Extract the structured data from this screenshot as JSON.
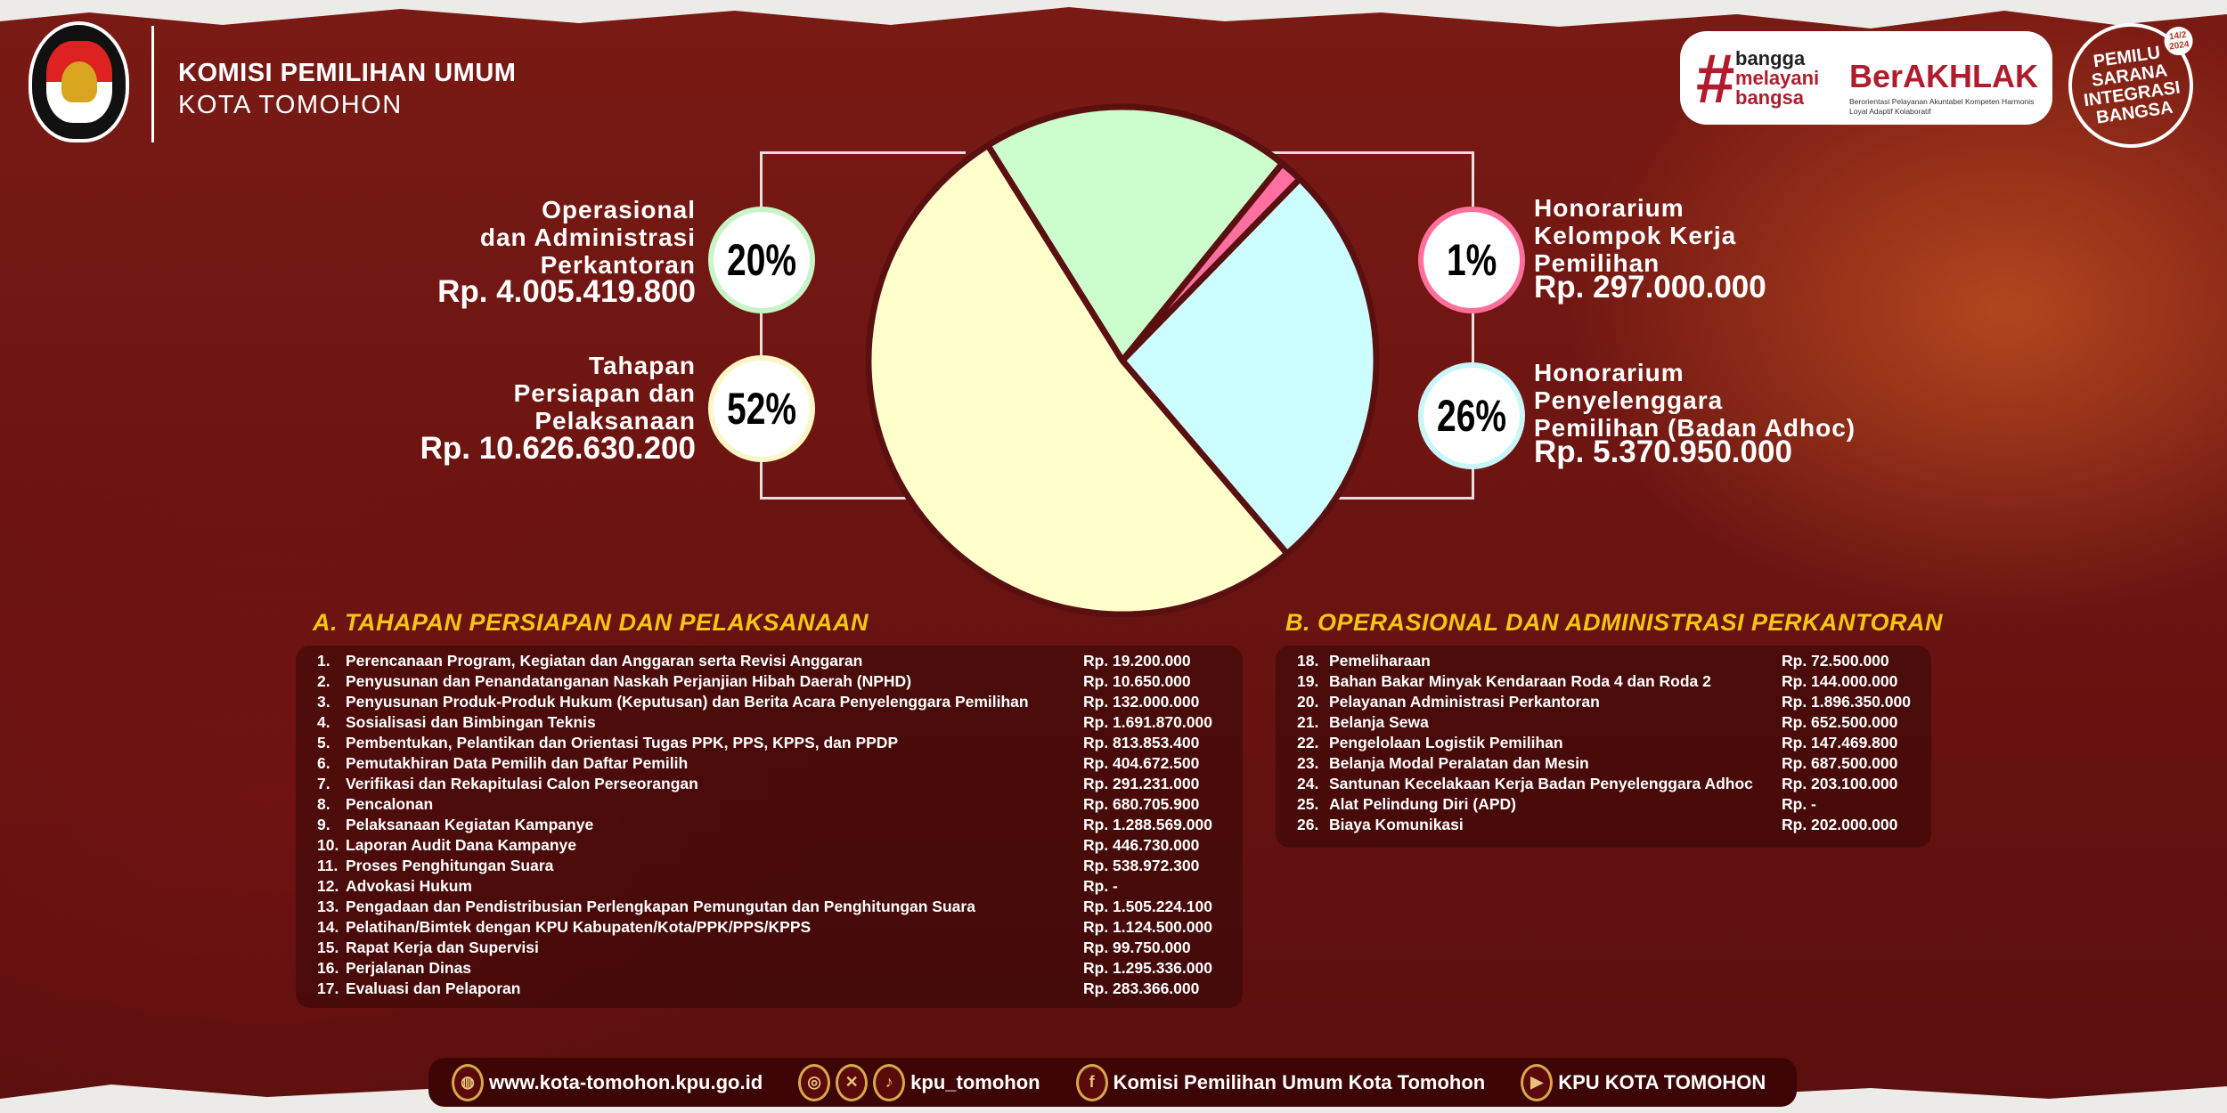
{
  "header": {
    "org_line1": "KOMISI PEMILIHAN UMUM",
    "org_line2": "KOTA TOMOHON",
    "logo_text": "KOMISI PEMILIHAN UMUM"
  },
  "badges": {
    "hash": "#",
    "bangga": [
      "bangga",
      "melayani",
      "bangsa"
    ],
    "berakhlak": "BerAKHLAK",
    "berakhlak_sub": "Berorientasi Pelayanan Akuntabel Kompeten Harmonis Loyal Adaptif Kolaboratif",
    "pemilu": [
      "PEMILU",
      "SARANA",
      "INTEGRASI",
      "BANGSA"
    ],
    "pemilu_date": "14/2 2024"
  },
  "chart_data": {
    "type": "pie",
    "slices": [
      {
        "label": "Operasional dan Administrasi Perkantoran",
        "percent_label": "20%",
        "amount": "Rp. 4.005.419.800",
        "value": 4005419800,
        "color": "#ccfdcc",
        "ring": "#c7f5c7"
      },
      {
        "label": "Honorarium Kelompok Kerja Pemilihan",
        "percent_label": "1%",
        "amount": "Rp. 297.000.000",
        "value": 297000000,
        "color": "#ff6fa0",
        "ring": "#ff6f9c"
      },
      {
        "label": "Honorarium Penyelenggara Pemilihan (Badan Adhoc)",
        "percent_label": "26%",
        "amount": "Rp. 5.370.950.000",
        "value": 5370950000,
        "color": "#ccfeff",
        "ring": "#c9f6fb"
      },
      {
        "label": "Tahapan Persiapan dan Pelaksanaan",
        "percent_label": "52%",
        "amount": "Rp. 10.626.630.200",
        "value": 10626630200,
        "color": "#ffffcc",
        "ring": "#fbf6c8"
      }
    ],
    "label_lines": {
      "s0": [
        "Operasional",
        "dan Administrasi",
        "Perkantoran"
      ],
      "s1": [
        "Honorarium",
        "Kelompok Kerja",
        "Pemilihan"
      ],
      "s2": [
        "Honorarium",
        "Penyelenggara",
        "Pemilihan (Badan Adhoc)"
      ],
      "s3": [
        "Tahapan",
        "Persiapan dan",
        "Pelaksanaan"
      ]
    }
  },
  "section_a": {
    "title": "A. TAHAPAN PERSIAPAN DAN PELAKSANAAN",
    "items": [
      [
        "1.",
        "Perencanaan Program, Kegiatan dan Anggaran serta Revisi Anggaran",
        "Rp. 19.200.000"
      ],
      [
        "2.",
        "Penyusunan dan Penandatanganan Naskah Perjanjian Hibah Daerah (NPHD)",
        "Rp. 10.650.000"
      ],
      [
        "3.",
        "Penyusunan Produk-Produk Hukum (Keputusan) dan Berita Acara Penyelenggara Pemilihan",
        "Rp. 132.000.000"
      ],
      [
        "4.",
        "Sosialisasi dan Bimbingan Teknis",
        "Rp. 1.691.870.000"
      ],
      [
        "5.",
        "Pembentukan, Pelantikan dan Orientasi Tugas PPK, PPS, KPPS, dan PPDP",
        "Rp. 813.853.400"
      ],
      [
        "6.",
        "Pemutakhiran Data Pemilih dan Daftar Pemilih",
        "Rp. 404.672.500"
      ],
      [
        "7.",
        "Verifikasi dan Rekapitulasi Calon Perseorangan",
        "Rp. 291.231.000"
      ],
      [
        "8.",
        "Pencalonan",
        "Rp. 680.705.900"
      ],
      [
        "9.",
        "Pelaksanaan Kegiatan Kampanye",
        "Rp. 1.288.569.000"
      ],
      [
        "10.",
        "Laporan Audit Dana Kampanye",
        "Rp. 446.730.000"
      ],
      [
        "11.",
        "Proses Penghitungan Suara",
        "Rp. 538.972.300"
      ],
      [
        "12.",
        "Advokasi Hukum",
        "Rp. -"
      ],
      [
        "13.",
        "Pengadaan dan Pendistribusian Perlengkapan Pemungutan dan Penghitungan Suara",
        "Rp. 1.505.224.100"
      ],
      [
        "14.",
        "Pelatihan/Bimtek dengan KPU Kabupaten/Kota/PPK/PPS/KPPS",
        "Rp. 1.124.500.000"
      ],
      [
        "15.",
        "Rapat Kerja dan Supervisi",
        "Rp. 99.750.000"
      ],
      [
        "16.",
        "Perjalanan Dinas",
        "Rp. 1.295.336.000"
      ],
      [
        "17.",
        "Evaluasi dan Pelaporan",
        "Rp. 283.366.000"
      ]
    ]
  },
  "section_b": {
    "title": "B. OPERASIONAL DAN ADMINISTRASI PERKANTORAN",
    "items": [
      [
        "18.",
        "Pemeliharaan",
        "Rp. 72.500.000"
      ],
      [
        "19.",
        "Bahan Bakar Minyak Kendaraan Roda 4 dan Roda 2",
        "Rp. 144.000.000"
      ],
      [
        "20.",
        "Pelayanan Administrasi Perkantoran",
        "Rp. 1.896.350.000"
      ],
      [
        "21.",
        "Belanja Sewa",
        "Rp. 652.500.000"
      ],
      [
        "22.",
        "Pengelolaan Logistik Pemilihan",
        "Rp. 147.469.800"
      ],
      [
        "23.",
        "Belanja Modal Peralatan dan Mesin",
        "Rp. 687.500.000"
      ],
      [
        "24.",
        "Santunan Kecelakaan Kerja Badan Penyelenggara Adhoc",
        "Rp. 203.100.000"
      ],
      [
        "25.",
        "Alat Pelindung Diri (APD)",
        "Rp. -"
      ],
      [
        "26.",
        "Biaya Komunikasi",
        "Rp. 202.000.000"
      ]
    ]
  },
  "footer": {
    "website": "www.kota-tomohon.kpu.go.id",
    "social": "kpu_tomohon",
    "facebook": "Komisi Pemilihan Umum Kota Tomohon",
    "youtube": "KPU KOTA TOMOHON",
    "icons": [
      "globe-icon",
      "instagram-icon",
      "x-icon",
      "tiktok-icon",
      "facebook-icon",
      "youtube-icon"
    ]
  }
}
